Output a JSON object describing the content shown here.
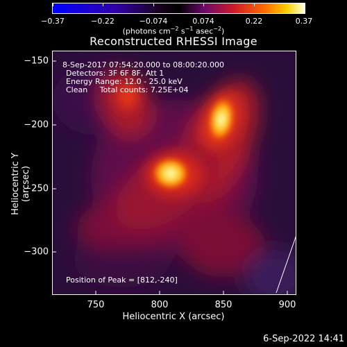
{
  "chart_data": {
    "type": "heatmap",
    "title": "Reconstructed RHESSI Image",
    "xlabel": "Heliocentric X (arcsec)",
    "ylabel": "Heliocentric Y (arcsec)",
    "xlim": [
      718,
      908
    ],
    "ylim": [
      -335,
      -145
    ],
    "x_ticks": [
      750,
      800,
      850,
      900
    ],
    "y_ticks": [
      -150,
      -200,
      -250,
      -300
    ],
    "colorbar": {
      "ticks": [
        "-0.37",
        "-0.22",
        "-0.074",
        "0.074",
        "0.22",
        "0.37"
      ],
      "range": [
        -0.37,
        0.37
      ],
      "units_prefix": "(photons cm",
      "units_sup1": "-2",
      "units_mid1": " s",
      "units_sup2": "-1",
      "units_mid2": " asec",
      "units_sup3": "-2",
      "units_suffix": ")"
    },
    "annotations": {
      "time_range": "8-Sep-2017 07:54:20.000 to 08:00:20.000",
      "detectors": "Detectors: 3F 6F 8F, Att 1",
      "energy": "Energy Range: 12.0 - 25.0 keV",
      "clean": "Clean     Total counts: 7.25E+04",
      "peak": "Position of Peak = [812,-240]"
    },
    "sources": [
      {
        "x": 812,
        "y": -240,
        "intensity": 0.37
      },
      {
        "x": 848,
        "y": -196,
        "intensity": 0.34
      },
      {
        "x": 778,
        "y": -183,
        "intensity": 0.14
      }
    ]
  },
  "footer": {
    "timestamp": "6-Sep-2022 14:41"
  }
}
